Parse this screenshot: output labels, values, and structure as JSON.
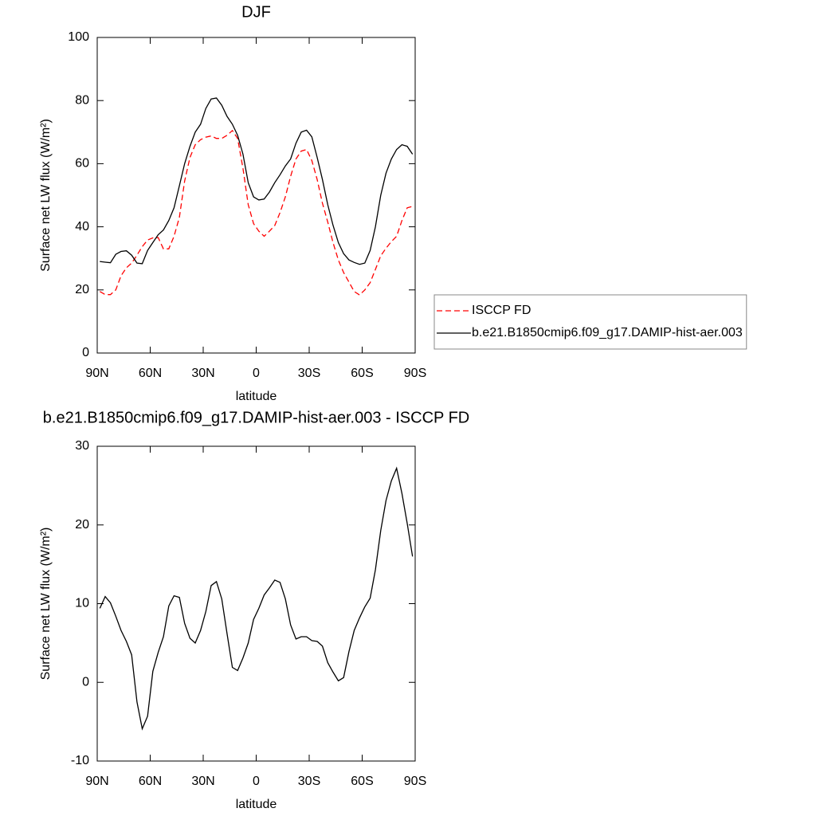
{
  "chart_data": [
    {
      "type": "line",
      "title": "DJF",
      "xlabel": "latitude",
      "ylabel": "Surface net LW flux (W/m²)",
      "x": [
        88.5,
        85.5,
        82.5,
        79.5,
        76.5,
        73.5,
        70.5,
        67.5,
        64.5,
        61.5,
        58.5,
        55.5,
        52.5,
        49.5,
        46.5,
        43.5,
        40.5,
        37.5,
        34.5,
        31.5,
        28.5,
        25.5,
        22.5,
        19.5,
        16.5,
        13.5,
        10.5,
        7.5,
        4.5,
        1.5,
        -1.5,
        -4.5,
        -7.5,
        -10.5,
        -13.5,
        -16.5,
        -19.5,
        -22.5,
        -25.5,
        -28.5,
        -31.5,
        -34.5,
        -37.5,
        -40.5,
        -43.5,
        -46.5,
        -49.5,
        -52.5,
        -55.5,
        -58.5,
        -61.5,
        -64.5,
        -67.5,
        -70.5,
        -73.5,
        -76.5,
        -79.5,
        -82.5,
        -85.5,
        -88.5
      ],
      "series": [
        {
          "name": "ISCCP FD",
          "color": "#ff0000",
          "style": "dashed",
          "values": [
            19.5,
            18.5,
            18.5,
            20,
            24.5,
            27,
            28.5,
            31,
            33.7,
            35.8,
            36.5,
            36.6,
            33,
            33,
            37,
            43,
            54.5,
            62,
            66,
            67.6,
            68.4,
            68.8,
            68,
            68,
            69,
            70.5,
            68,
            58.5,
            47,
            41,
            38.6,
            37,
            38.6,
            40.4,
            44.5,
            49.5,
            56,
            61.5,
            64,
            64.5,
            61,
            55,
            47.5,
            41.5,
            35,
            29.5,
            25.5,
            22.5,
            19.5,
            18.4,
            20,
            22.3,
            26.5,
            30.8,
            33.2,
            35.3,
            37,
            42,
            46,
            46.5
          ]
        },
        {
          "name": "b.e21.B1850cmip6.f09_g17.DAMIP-hist-aer.003",
          "color": "#000000",
          "style": "solid",
          "values": [
            29,
            28.8,
            28.6,
            31.3,
            32.2,
            32.4,
            31,
            28.5,
            28.3,
            32.5,
            35,
            37.5,
            39,
            42,
            46,
            53,
            60,
            65.5,
            70,
            72.5,
            77.5,
            80.5,
            80.8,
            78.5,
            75,
            72.5,
            69,
            63,
            54,
            49.5,
            48.5,
            48.8,
            51,
            54,
            56.5,
            59.3,
            61.5,
            66.5,
            70,
            70.6,
            68.5,
            62,
            55,
            47,
            40.5,
            35,
            31.5,
            29.5,
            28.7,
            28.1,
            28.5,
            32.5,
            40,
            50,
            57,
            61.5,
            64.5,
            66,
            65.5,
            63
          ]
        }
      ],
      "xlim": [
        90,
        -90
      ],
      "xticks": [
        {
          "value": 90,
          "label": "90N"
        },
        {
          "value": 60,
          "label": "60N"
        },
        {
          "value": 30,
          "label": "30N"
        },
        0,
        {
          "value": -30,
          "label": "30S"
        },
        {
          "value": -60,
          "label": "60S"
        },
        {
          "value": -90,
          "label": "90S"
        }
      ],
      "ylim": [
        0,
        100
      ],
      "yticks": [
        0,
        20,
        40,
        60,
        80,
        100
      ],
      "legend": "right"
    },
    {
      "type": "line",
      "title": "b.e21.B1850cmip6.f09_g17.DAMIP-hist-aer.003 - ISCCP FD",
      "xlabel": "latitude",
      "ylabel": "Surface net LW flux (W/m²)",
      "x": [
        88.5,
        85.5,
        82.5,
        79.5,
        76.5,
        73.5,
        70.5,
        67.5,
        64.5,
        61.5,
        58.5,
        55.5,
        52.5,
        49.5,
        46.5,
        43.5,
        40.5,
        37.5,
        34.5,
        31.5,
        28.5,
        25.5,
        22.5,
        19.5,
        16.5,
        13.5,
        10.5,
        7.5,
        4.5,
        1.5,
        -1.5,
        -4.5,
        -7.5,
        -10.5,
        -13.5,
        -16.5,
        -19.5,
        -22.5,
        -25.5,
        -28.5,
        -31.5,
        -34.5,
        -37.5,
        -40.5,
        -43.5,
        -46.5,
        -49.5,
        -52.5,
        -55.5,
        -58.5,
        -61.5,
        -64.5,
        -67.5,
        -70.5,
        -73.5,
        -76.5,
        -79.5,
        -82.5,
        -85.5,
        -88.5
      ],
      "series": [
        {
          "color": "#000000",
          "style": "solid",
          "values": [
            9.4,
            10.9,
            10.1,
            8.4,
            6.6,
            5.2,
            3.5,
            -2.5,
            -5.9,
            -4.3,
            1.4,
            3.8,
            5.8,
            9.7,
            11,
            10.8,
            7.5,
            5.6,
            5,
            6.6,
            9,
            12.3,
            12.8,
            10.6,
            6.2,
            1.9,
            1.5,
            3.1,
            5,
            8,
            9.4,
            11.1,
            12,
            13,
            12.7,
            10.6,
            7.3,
            5.5,
            5.8,
            5.8,
            5.3,
            5.2,
            4.6,
            2.5,
            1.3,
            0.2,
            0.6,
            3.9,
            6.6,
            8.2,
            9.6,
            10.7,
            14.3,
            19.3,
            23.1,
            25.6,
            27.2,
            24,
            20.2,
            16
          ]
        }
      ],
      "xlim": [
        90,
        -90
      ],
      "xticks": [
        {
          "value": 90,
          "label": "90N"
        },
        {
          "value": 60,
          "label": "60N"
        },
        {
          "value": 30,
          "label": "30N"
        },
        0,
        {
          "value": -30,
          "label": "30S"
        },
        {
          "value": -60,
          "label": "60S"
        },
        {
          "value": -90,
          "label": "90S"
        }
      ],
      "ylim": [
        -10,
        30
      ],
      "yticks": [
        -10,
        0,
        10,
        20,
        30
      ]
    }
  ]
}
